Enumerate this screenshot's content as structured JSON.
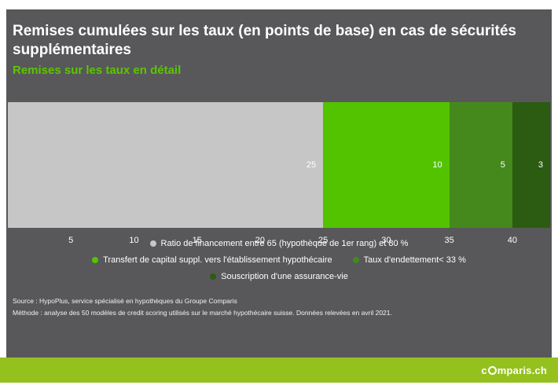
{
  "title": "Remises cumulées sur les taux (en points de base) en cas de sécurités  supplémentaires",
  "subtitle": "Remises sur les taux en détail",
  "chart_data": {
    "type": "bar",
    "orientation": "horizontal-stacked",
    "xlim": [
      0,
      43
    ],
    "x_ticks": [
      5,
      10,
      15,
      20,
      25,
      30,
      35,
      40
    ],
    "segments": [
      {
        "label": "Ratio de financement entre 65 (hypothèque de 1er rang) et 80 %",
        "value": 25,
        "color": "#c6c6c6"
      },
      {
        "label": "Transfert de capital suppl. vers l'établissement hypothécaire",
        "value": 10,
        "color": "#53c300"
      },
      {
        "label": "Taux d'endettement< 33 %",
        "value": 5,
        "color": "#45891c"
      },
      {
        "label": "Souscription d'une assurance-vie",
        "value": 3,
        "color": "#2c5b12"
      }
    ],
    "legend_position": "bottom",
    "grid": false
  },
  "source": {
    "line1": "Source : HypoPlus, service spécialisé en hypothèques du Groupe Comparis",
    "line2": "Méthode : analyse des 50 modèles de credit scoring utilisés sur le marché hypothécaire suisse. Données relevées en avril 2021."
  },
  "footer": {
    "logo_prefix": "c",
    "logo_suffix": "mparis.ch"
  }
}
